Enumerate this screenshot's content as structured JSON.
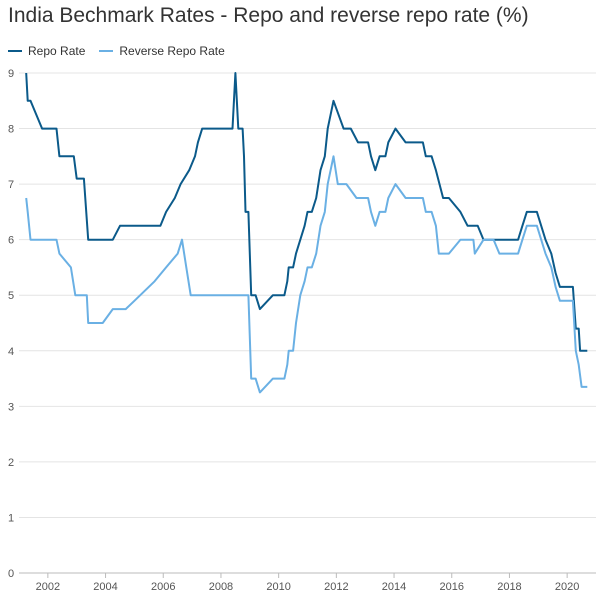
{
  "chart_data": {
    "type": "line",
    "title": "India Bechmark Rates - Repo and reverse repo rate (%)",
    "xlabel": "",
    "ylabel": "",
    "xlim": [
      2001.0,
      2021.0
    ],
    "ylim": [
      0,
      9
    ],
    "y_ticks": [
      0,
      1,
      2,
      3,
      4,
      5,
      6,
      7,
      8,
      9
    ],
    "x_ticks": [
      2002,
      2004,
      2006,
      2008,
      2010,
      2012,
      2014,
      2016,
      2018,
      2020
    ],
    "grid": true,
    "legend_position": "top-left",
    "series": [
      {
        "name": "Repo Rate",
        "color": "#0b5a8a",
        "points": [
          [
            2001.25,
            9.0
          ],
          [
            2001.3,
            8.5
          ],
          [
            2001.4,
            8.5
          ],
          [
            2001.8,
            8.0
          ],
          [
            2002.3,
            8.0
          ],
          [
            2002.4,
            7.5
          ],
          [
            2002.9,
            7.5
          ],
          [
            2003.0,
            7.1
          ],
          [
            2003.25,
            7.1
          ],
          [
            2003.4,
            6.0
          ],
          [
            2004.25,
            6.0
          ],
          [
            2004.5,
            6.25
          ],
          [
            2005.9,
            6.25
          ],
          [
            2006.1,
            6.5
          ],
          [
            2006.4,
            6.75
          ],
          [
            2006.6,
            7.0
          ],
          [
            2006.9,
            7.25
          ],
          [
            2007.1,
            7.5
          ],
          [
            2007.2,
            7.75
          ],
          [
            2007.35,
            8.0
          ],
          [
            2008.4,
            8.0
          ],
          [
            2008.5,
            9.0
          ],
          [
            2008.6,
            8.0
          ],
          [
            2008.75,
            8.0
          ],
          [
            2008.8,
            7.5
          ],
          [
            2008.85,
            6.5
          ],
          [
            2008.95,
            6.5
          ],
          [
            2009.05,
            5.0
          ],
          [
            2009.2,
            5.0
          ],
          [
            2009.35,
            4.75
          ],
          [
            2009.8,
            5.0
          ],
          [
            2010.2,
            5.0
          ],
          [
            2010.3,
            5.25
          ],
          [
            2010.35,
            5.5
          ],
          [
            2010.5,
            5.5
          ],
          [
            2010.6,
            5.75
          ],
          [
            2010.9,
            6.25
          ],
          [
            2011.0,
            6.5
          ],
          [
            2011.15,
            6.5
          ],
          [
            2011.3,
            6.75
          ],
          [
            2011.45,
            7.25
          ],
          [
            2011.6,
            7.5
          ],
          [
            2011.7,
            8.0
          ],
          [
            2011.9,
            8.5
          ],
          [
            2012.25,
            8.0
          ],
          [
            2012.5,
            8.0
          ],
          [
            2012.75,
            7.75
          ],
          [
            2013.1,
            7.75
          ],
          [
            2013.2,
            7.5
          ],
          [
            2013.35,
            7.25
          ],
          [
            2013.5,
            7.5
          ],
          [
            2013.7,
            7.5
          ],
          [
            2013.8,
            7.75
          ],
          [
            2014.05,
            8.0
          ],
          [
            2014.4,
            7.75
          ],
          [
            2015.0,
            7.75
          ],
          [
            2015.1,
            7.5
          ],
          [
            2015.3,
            7.5
          ],
          [
            2015.45,
            7.25
          ],
          [
            2015.7,
            6.75
          ],
          [
            2015.9,
            6.75
          ],
          [
            2016.3,
            6.5
          ],
          [
            2016.55,
            6.25
          ],
          [
            2016.9,
            6.25
          ],
          [
            2017.1,
            6.0
          ],
          [
            2017.6,
            6.0
          ],
          [
            2018.3,
            6.0
          ],
          [
            2018.45,
            6.25
          ],
          [
            2018.6,
            6.5
          ],
          [
            2018.95,
            6.5
          ],
          [
            2019.1,
            6.25
          ],
          [
            2019.25,
            6.0
          ],
          [
            2019.45,
            5.75
          ],
          [
            2019.6,
            5.4
          ],
          [
            2019.75,
            5.15
          ],
          [
            2020.2,
            5.15
          ],
          [
            2020.3,
            4.4
          ],
          [
            2020.4,
            4.4
          ],
          [
            2020.45,
            4.0
          ],
          [
            2020.7,
            4.0
          ]
        ]
      },
      {
        "name": "Reverse Repo Rate",
        "color": "#6ab0e4",
        "points": [
          [
            2001.25,
            6.75
          ],
          [
            2001.3,
            6.5
          ],
          [
            2001.4,
            6.0
          ],
          [
            2002.3,
            6.0
          ],
          [
            2002.4,
            5.75
          ],
          [
            2002.8,
            5.5
          ],
          [
            2002.95,
            5.0
          ],
          [
            2003.35,
            5.0
          ],
          [
            2003.4,
            4.5
          ],
          [
            2003.9,
            4.5
          ],
          [
            2004.25,
            4.75
          ],
          [
            2004.7,
            4.75
          ],
          [
            2005.0,
            4.9
          ],
          [
            2005.7,
            5.25
          ],
          [
            2006.1,
            5.5
          ],
          [
            2006.5,
            5.75
          ],
          [
            2006.65,
            6.0
          ],
          [
            2006.8,
            5.5
          ],
          [
            2006.95,
            5.0
          ],
          [
            2008.85,
            5.0
          ],
          [
            2008.95,
            5.0
          ],
          [
            2009.05,
            3.5
          ],
          [
            2009.2,
            3.5
          ],
          [
            2009.35,
            3.25
          ],
          [
            2009.8,
            3.5
          ],
          [
            2010.2,
            3.5
          ],
          [
            2010.3,
            3.75
          ],
          [
            2010.35,
            4.0
          ],
          [
            2010.5,
            4.0
          ],
          [
            2010.6,
            4.5
          ],
          [
            2010.75,
            5.0
          ],
          [
            2010.9,
            5.25
          ],
          [
            2011.0,
            5.5
          ],
          [
            2011.15,
            5.5
          ],
          [
            2011.3,
            5.75
          ],
          [
            2011.45,
            6.25
          ],
          [
            2011.6,
            6.5
          ],
          [
            2011.7,
            7.0
          ],
          [
            2011.9,
            7.5
          ],
          [
            2012.05,
            7.0
          ],
          [
            2012.35,
            7.0
          ],
          [
            2012.7,
            6.75
          ],
          [
            2013.1,
            6.75
          ],
          [
            2013.2,
            6.5
          ],
          [
            2013.35,
            6.25
          ],
          [
            2013.5,
            6.5
          ],
          [
            2013.7,
            6.5
          ],
          [
            2013.8,
            6.75
          ],
          [
            2014.05,
            7.0
          ],
          [
            2014.4,
            6.75
          ],
          [
            2015.0,
            6.75
          ],
          [
            2015.1,
            6.5
          ],
          [
            2015.3,
            6.5
          ],
          [
            2015.45,
            6.25
          ],
          [
            2015.55,
            5.75
          ],
          [
            2015.9,
            5.75
          ],
          [
            2016.3,
            6.0
          ],
          [
            2016.55,
            6.0
          ],
          [
            2016.75,
            6.0
          ],
          [
            2016.8,
            5.75
          ],
          [
            2017.1,
            6.0
          ],
          [
            2017.45,
            6.0
          ],
          [
            2017.65,
            5.75
          ],
          [
            2018.3,
            5.75
          ],
          [
            2018.45,
            6.0
          ],
          [
            2018.6,
            6.25
          ],
          [
            2018.95,
            6.25
          ],
          [
            2019.1,
            6.0
          ],
          [
            2019.25,
            5.75
          ],
          [
            2019.45,
            5.5
          ],
          [
            2019.6,
            5.15
          ],
          [
            2019.75,
            4.9
          ],
          [
            2020.2,
            4.9
          ],
          [
            2020.3,
            4.0
          ],
          [
            2020.4,
            3.75
          ],
          [
            2020.5,
            3.35
          ],
          [
            2020.7,
            3.35
          ]
        ]
      }
    ]
  }
}
